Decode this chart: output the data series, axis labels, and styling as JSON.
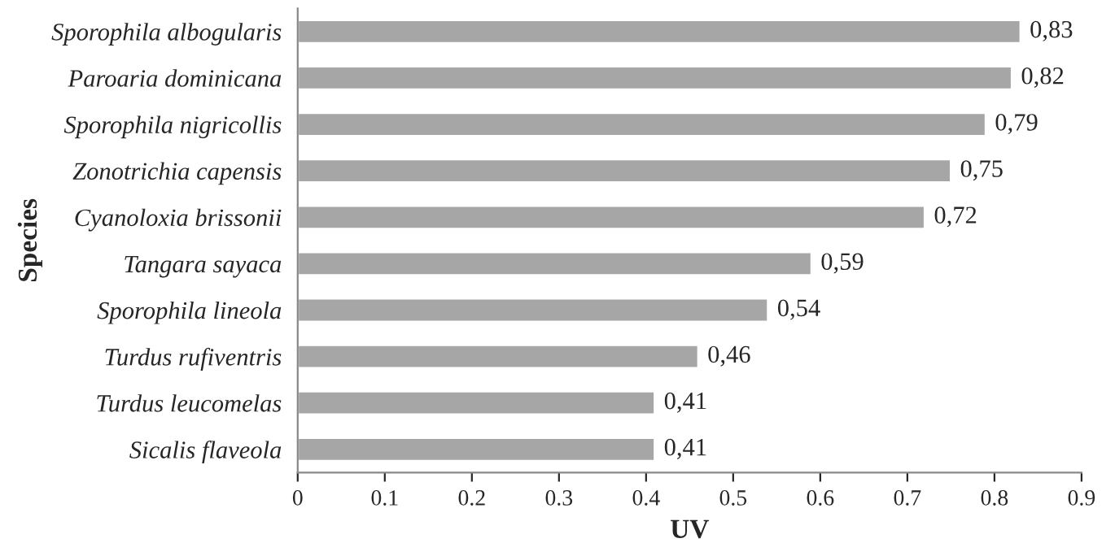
{
  "chart_data": {
    "type": "bar",
    "orientation": "horizontal",
    "xlabel": "UV",
    "ylabel": "Species",
    "categories": [
      "Sporophila albogularis",
      "Paroaria dominicana",
      "Sporophila nigricollis",
      "Zonotrichia capensis",
      "Cyanoloxia brissonii",
      "Tangara sayaca",
      "Sporophila lineola",
      "Turdus rufiventris",
      "Turdus leucomelas",
      "Sicalis flaveola"
    ],
    "values": [
      0.83,
      0.82,
      0.79,
      0.75,
      0.72,
      0.59,
      0.54,
      0.46,
      0.41,
      0.41
    ],
    "value_labels": [
      "0,83",
      "0,82",
      "0,79",
      "0,75",
      "0,72",
      "0,59",
      "0,54",
      "0,46",
      "0,41",
      "0,41"
    ],
    "color": "#a6a6a6",
    "xlim": [
      0,
      0.9
    ],
    "xticks": [
      0,
      0.1,
      0.2,
      0.3,
      0.4,
      0.5,
      0.6,
      0.7,
      0.8,
      0.9
    ],
    "grid": false,
    "legend": false
  }
}
